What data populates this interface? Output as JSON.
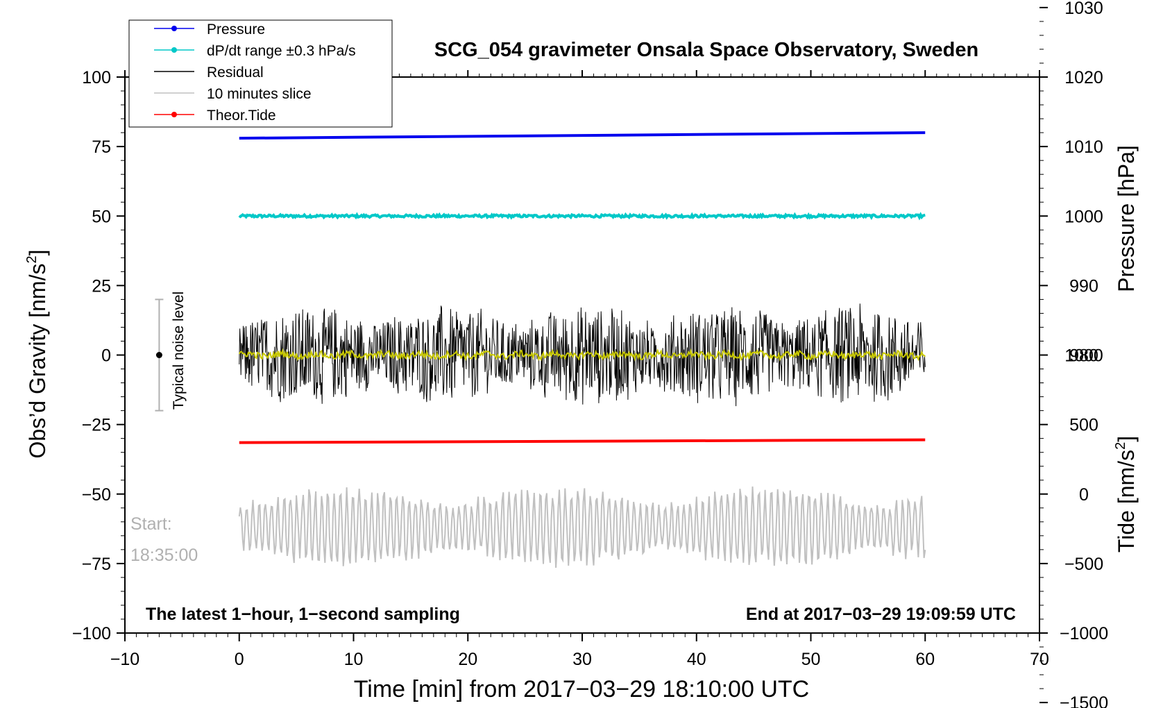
{
  "chart_data": {
    "type": "line",
    "title": "SCG_054 gravimeter Onsala Space Observatory, Sweden",
    "xlabel": "Time [min] from 2017−03−29 18:10:00 UTC",
    "ylabel_left": "Obs’d Gravity [nm/s",
    "ylabel_left_sup": "2",
    "ylabel_left_end": "]",
    "ylabel_right_pressure": "Pressure [hPa]",
    "ylabel_right_tide": "Tide [nm/s",
    "ylabel_right_tide_sup": "2",
    "ylabel_right_tide_end": "]",
    "xlim": [
      -10,
      70
    ],
    "ylim": [
      -100,
      100
    ],
    "x_ticks": [
      "−10",
      "0",
      "10",
      "20",
      "30",
      "40",
      "50",
      "60",
      "70"
    ],
    "x_tick_values": [
      -10,
      0,
      10,
      20,
      30,
      40,
      50,
      60,
      70
    ],
    "y_ticks": [
      "100",
      "75",
      "50",
      "25",
      "0",
      "−25",
      "−50",
      "−75",
      "−100"
    ],
    "y_tick_values": [
      100,
      75,
      50,
      25,
      0,
      -25,
      -50,
      -75,
      -100
    ],
    "pressure_axis": {
      "ticks": [
        "1030",
        "1020",
        "1010",
        "1000",
        "990",
        "980"
      ],
      "tick_values": [
        1030,
        1020,
        1010,
        1000,
        990,
        980
      ],
      "gravity_at_1000": 50,
      "gravity_per_hpa": 2.5
    },
    "tide_axis": {
      "ticks": [
        "1000",
        "500",
        "0",
        "−500",
        "−1000",
        "−1500"
      ],
      "tick_values": [
        1000,
        500,
        0,
        -500,
        -1000,
        -1500
      ],
      "gravity_at_0": -50,
      "gravity_per_unit": 0.05
    },
    "series": [
      {
        "name": "Pressure",
        "color": "#0000ee",
        "x": [
          0,
          60
        ],
        "y_gravity": [
          78,
          80
        ],
        "y_pressure_hpa": [
          1011.2,
          1012.0
        ]
      },
      {
        "name": "dP/dt range ±0.3 hPa/s",
        "color": "#00c8c8",
        "x": [
          0,
          60
        ],
        "y_gravity": [
          50,
          50
        ]
      },
      {
        "name": "Residual",
        "color": "#000000",
        "x": [
          0,
          60
        ],
        "y_gravity_center": 0,
        "noise_range": [
          -25,
          21
        ]
      },
      {
        "name": "10 minutes slice",
        "color": "#c0c0c0",
        "x": [
          0,
          60
        ],
        "y_gravity_center": -62,
        "range": [
          -82,
          -45
        ]
      },
      {
        "name": "Theor.Tide",
        "color": "#ff0000",
        "x": [
          0,
          60
        ],
        "y_gravity": [
          -31.5,
          -30.5
        ]
      }
    ],
    "legend": {
      "position": "top-left",
      "entries": [
        {
          "label": "Pressure",
          "color": "#0000ee",
          "marker": true
        },
        {
          "label": "dP/dt range ±0.3 hPa/s",
          "color": "#00c8c8",
          "marker": true
        },
        {
          "label": "Residual",
          "color": "#000000",
          "marker": false
        },
        {
          "label": "10 minutes slice",
          "color": "#c0c0c0",
          "marker": false
        },
        {
          "label": "Theor.Tide",
          "color": "#ff0000",
          "marker": true
        }
      ]
    },
    "annotations": {
      "noise_label": "Typical noise level",
      "noise_range": [
        -20,
        20
      ],
      "noise_x": -7,
      "start_label": "Start:",
      "start_time": "18:35:00",
      "bottom_left": "The latest 1−hour, 1−second sampling",
      "bottom_right": "End at 2017−03−29 19:09:59 UTC"
    }
  }
}
